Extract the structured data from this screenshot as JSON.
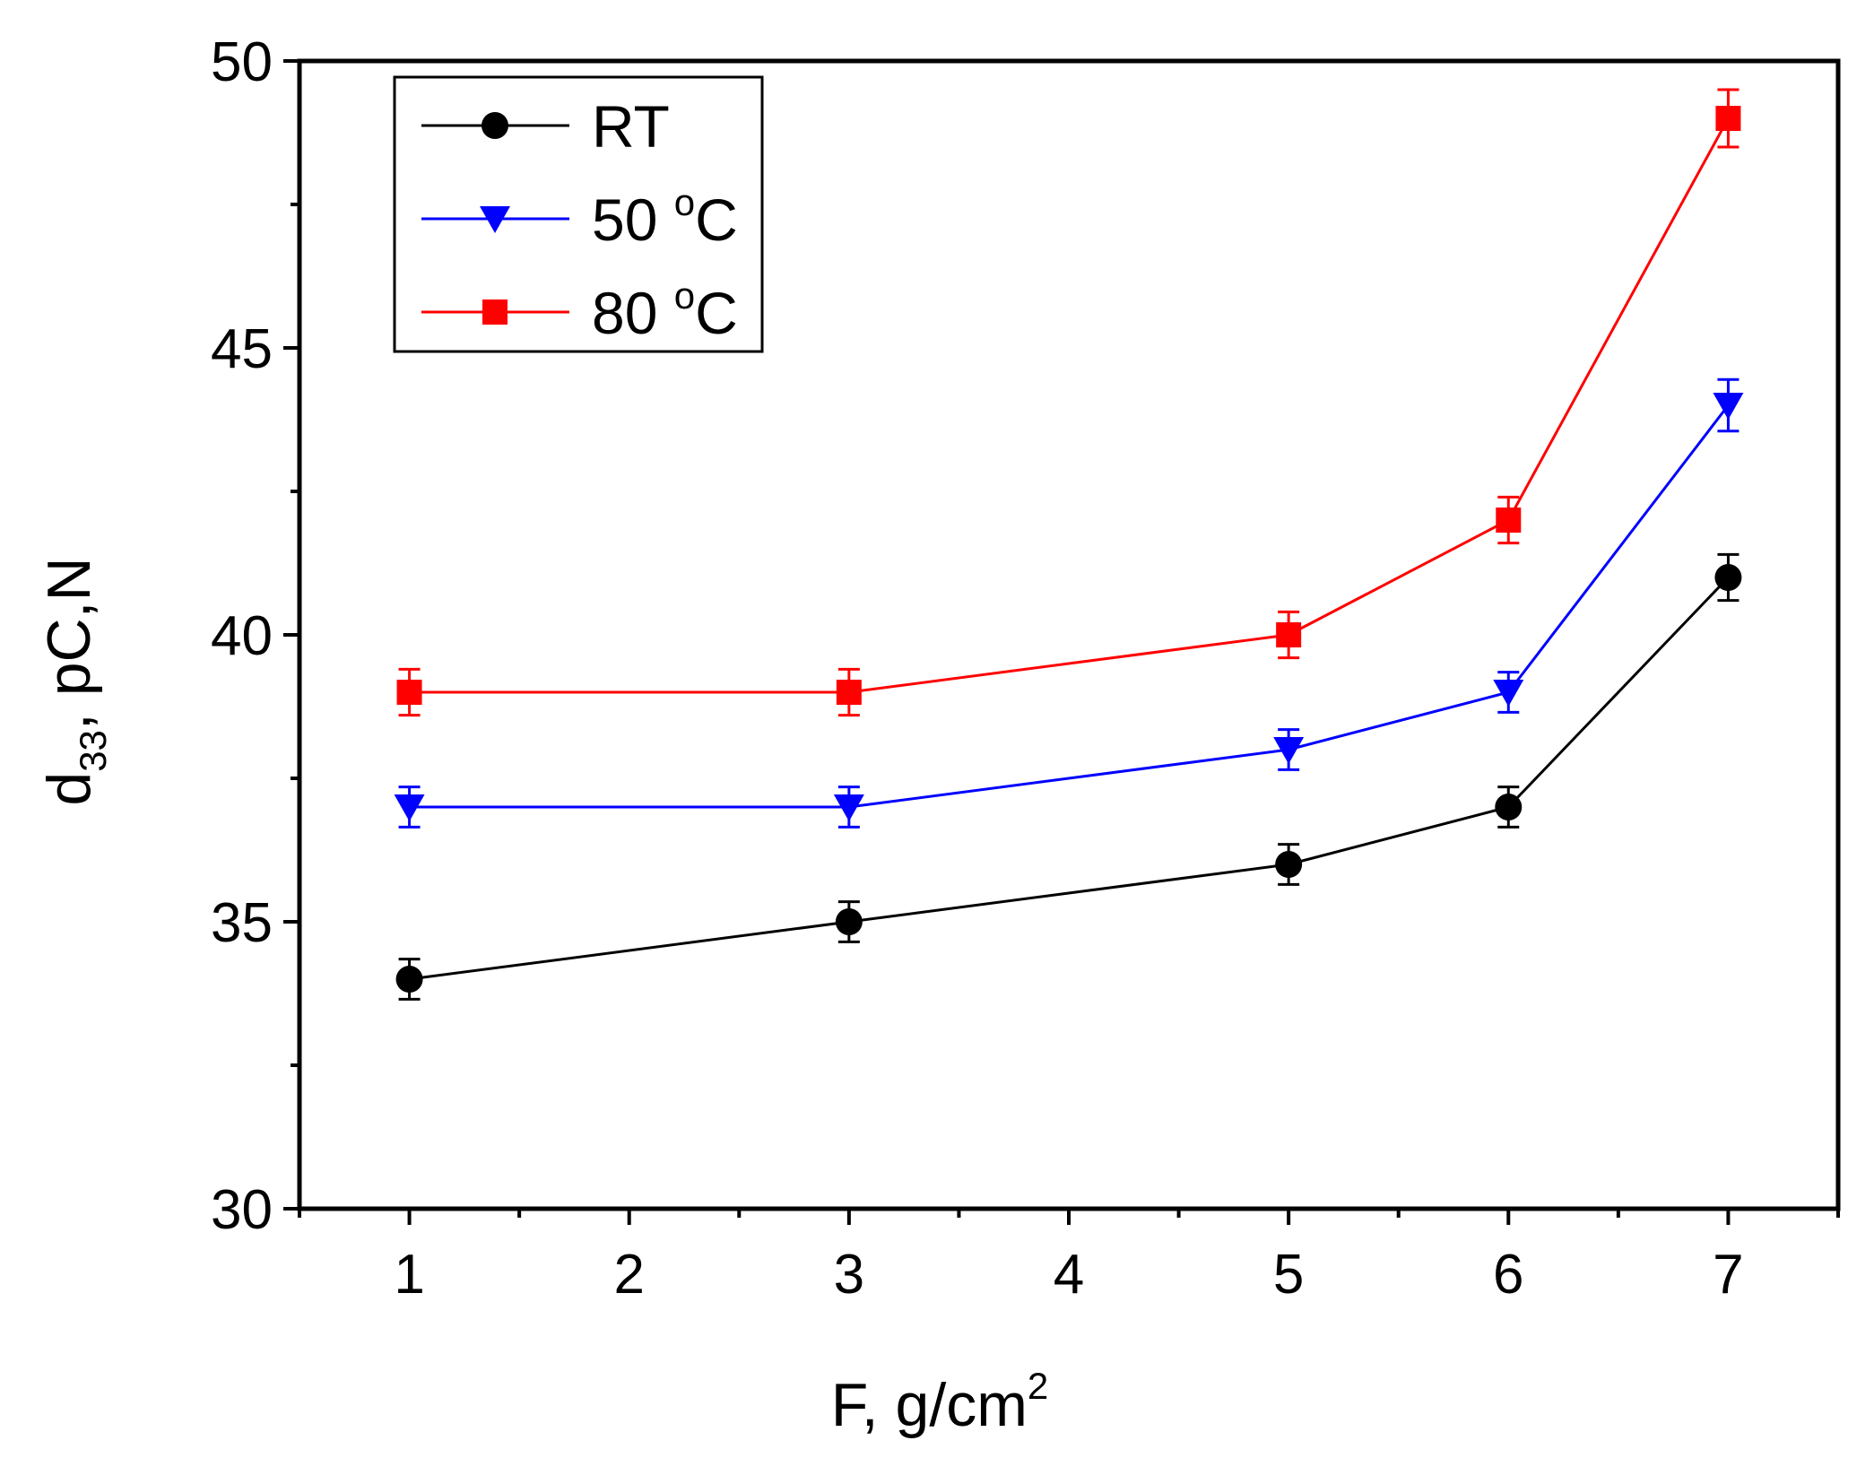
{
  "chart_data": {
    "type": "line",
    "title": "",
    "xlabel": {
      "main": "F, g/cm",
      "sup": "2"
    },
    "ylabel": {
      "main": "d",
      "sub": "33",
      "rest": ", pC,N"
    },
    "x": [
      1,
      3,
      5,
      6,
      7
    ],
    "xlim": [
      0.5,
      7.5
    ],
    "ylim": [
      30,
      50
    ],
    "xticks": [
      "1",
      "2",
      "3",
      "4",
      "5",
      "6",
      "7"
    ],
    "yticks": [
      "30",
      "35",
      "40",
      "45",
      "50"
    ],
    "grid": false,
    "legend_position": "top-left",
    "series": [
      {
        "name": "RT",
        "unit": "",
        "marker": "circle",
        "color": "#000000",
        "values": [
          34,
          35,
          36,
          37,
          41
        ],
        "errors": [
          0.35,
          0.35,
          0.35,
          0.35,
          0.4
        ]
      },
      {
        "name": "50 ",
        "unit": "°C",
        "marker": "triangle-down",
        "color": "#0000ff",
        "values": [
          37,
          37,
          38,
          39,
          44
        ],
        "errors": [
          0.35,
          0.35,
          0.35,
          0.35,
          0.45
        ]
      },
      {
        "name": "80 ",
        "unit": "°C",
        "marker": "square",
        "color": "#ff0000",
        "values": [
          39,
          39,
          40,
          42,
          49
        ],
        "errors": [
          0.4,
          0.4,
          0.4,
          0.4,
          0.5
        ]
      }
    ]
  }
}
